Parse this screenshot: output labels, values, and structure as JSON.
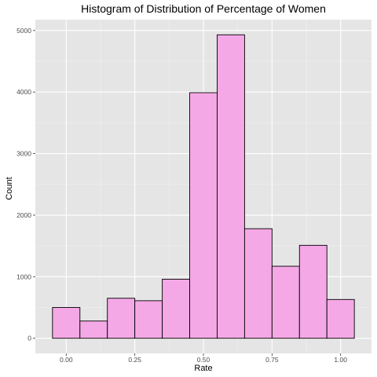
{
  "chart_data": {
    "type": "bar",
    "title": "Histogram of Distribution of Percentage of Women",
    "xlabel": "Rate",
    "ylabel": "Count",
    "bins": [
      {
        "x0": -0.05,
        "x1": 0.05,
        "count": 500
      },
      {
        "x0": 0.05,
        "x1": 0.15,
        "count": 280
      },
      {
        "x0": 0.15,
        "x1": 0.25,
        "count": 650
      },
      {
        "x0": 0.25,
        "x1": 0.35,
        "count": 610
      },
      {
        "x0": 0.35,
        "x1": 0.45,
        "count": 960
      },
      {
        "x0": 0.45,
        "x1": 0.55,
        "count": 3990
      },
      {
        "x0": 0.55,
        "x1": 0.65,
        "count": 4930
      },
      {
        "x0": 0.65,
        "x1": 0.75,
        "count": 1780
      },
      {
        "x0": 0.75,
        "x1": 0.85,
        "count": 1170
      },
      {
        "x0": 0.85,
        "x1": 0.95,
        "count": 1510
      },
      {
        "x0": 0.95,
        "x1": 1.05,
        "count": 630
      }
    ],
    "x_ticks": [
      {
        "value": 0.0,
        "label": "0.00"
      },
      {
        "value": 0.25,
        "label": "0.25"
      },
      {
        "value": 0.5,
        "label": "0.50"
      },
      {
        "value": 0.75,
        "label": "0.75"
      },
      {
        "value": 1.0,
        "label": "1.00"
      }
    ],
    "y_ticks": [
      {
        "value": 0,
        "label": "0"
      },
      {
        "value": 1000,
        "label": "1000"
      },
      {
        "value": 2000,
        "label": "2000"
      },
      {
        "value": 3000,
        "label": "3000"
      },
      {
        "value": 4000,
        "label": "4000"
      },
      {
        "value": 5000,
        "label": "5000"
      }
    ],
    "xlim": [
      -0.1125,
      1.1125
    ],
    "ylim": [
      -246.5,
      5176.5
    ],
    "grid": true,
    "colors": {
      "bar_fill": "#f5a8e6",
      "bar_stroke": "#000000",
      "panel_background": "#e5e5e5",
      "grid_major": "#ffffff",
      "grid_minor": "#f2f2f2",
      "tick_text": "#4d4d4d",
      "tick_mark": "#333333"
    }
  }
}
